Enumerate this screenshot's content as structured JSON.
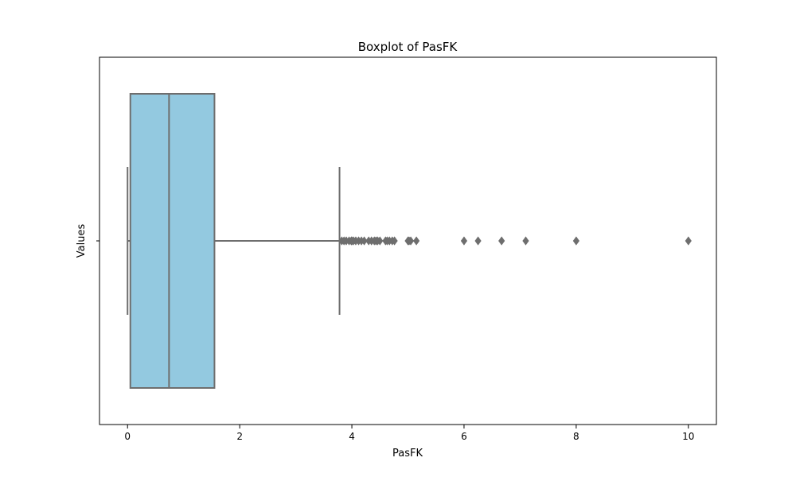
{
  "chart_data": {
    "type": "boxplot",
    "orientation": "horizontal",
    "title": "Boxplot of PasFK",
    "xlabel": "PasFK",
    "ylabel": "Values",
    "xlim": [
      -0.5,
      10.5
    ],
    "x_ticks": [
      0,
      2,
      4,
      6,
      8,
      10
    ],
    "x_tick_labels": [
      "0",
      "2",
      "4",
      "6",
      "8",
      "10"
    ],
    "y_ticks": [
      ""
    ],
    "grid": false,
    "box": {
      "whisker_low": 0.0,
      "q1": 0.05,
      "median": 0.74,
      "q3": 1.55,
      "whisker_high": 3.78
    },
    "outliers": [
      3.82,
      3.86,
      3.9,
      3.95,
      3.99,
      4.0,
      4.03,
      4.07,
      4.12,
      4.17,
      4.22,
      4.3,
      4.35,
      4.4,
      4.43,
      4.46,
      4.5,
      4.6,
      4.63,
      4.67,
      4.72,
      4.76,
      5.0,
      5.02,
      5.05,
      5.15,
      6.0,
      6.25,
      6.67,
      7.1,
      8.0,
      10.0
    ]
  },
  "colors": {
    "box_fill": "#93c9e0",
    "line": "#6e6e6e",
    "outlier": "#6e6e6e",
    "axis": "#000000"
  }
}
